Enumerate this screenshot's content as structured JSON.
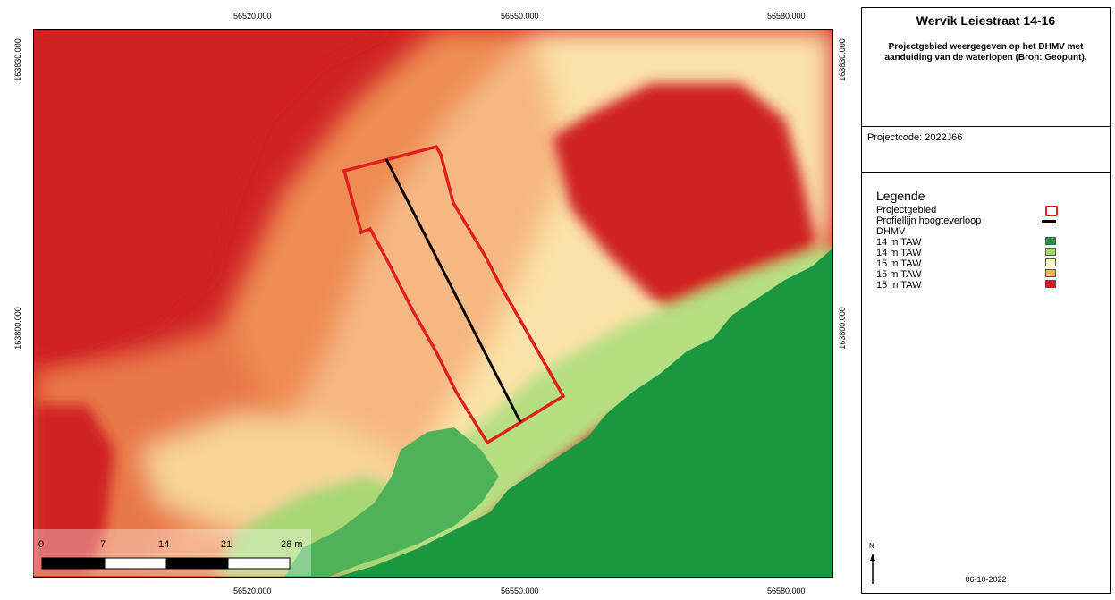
{
  "map": {
    "coords": {
      "top": [
        "56520.000",
        "56550.000",
        "56580.000"
      ],
      "bottom": [
        "56520.000",
        "56550.000",
        "56580.000"
      ],
      "left": [
        "163830.000",
        "163800.000"
      ],
      "right": [
        "163830.000",
        "163800.000"
      ]
    },
    "scalebar": {
      "labels": [
        "0",
        "7",
        "14",
        "21",
        "28 m"
      ]
    }
  },
  "panel": {
    "title": "Wervik Leiestraat 14-16",
    "subtitle": "Projectgebied weergegeven op het DHMV met aanduiding van de waterlopen (Bron: Geopunt).",
    "project_code": "Projectcode: 2022J66",
    "legend": {
      "heading": "Legende",
      "items": [
        {
          "label": "Projectgebied",
          "type": "outline",
          "color": "#e02020"
        },
        {
          "label": "Profiellijn hoogteverloop",
          "type": "line",
          "color": "#000000"
        },
        {
          "label": "DHMV",
          "type": "none"
        },
        {
          "label": "14 m TAW",
          "type": "swatch",
          "color": "#1a9641"
        },
        {
          "label": "14 m TAW",
          "type": "swatch",
          "color": "#a6d96a"
        },
        {
          "label": "15 m TAW",
          "type": "swatch",
          "color": "#ffffbf"
        },
        {
          "label": "15 m TAW",
          "type": "swatch",
          "color": "#fdae61"
        },
        {
          "label": "15 m TAW",
          "type": "swatch",
          "color": "#d7191c"
        }
      ]
    },
    "north_label": "N",
    "date": "06-10-2022"
  },
  "colors": {
    "red": "#cf2323",
    "orange": "#ef8a4e",
    "lightorange": "#f7c08a",
    "yellow": "#fbe7ad",
    "lightgreen": "#b6df82",
    "green": "#1b9641",
    "boundary": "#e02020"
  }
}
